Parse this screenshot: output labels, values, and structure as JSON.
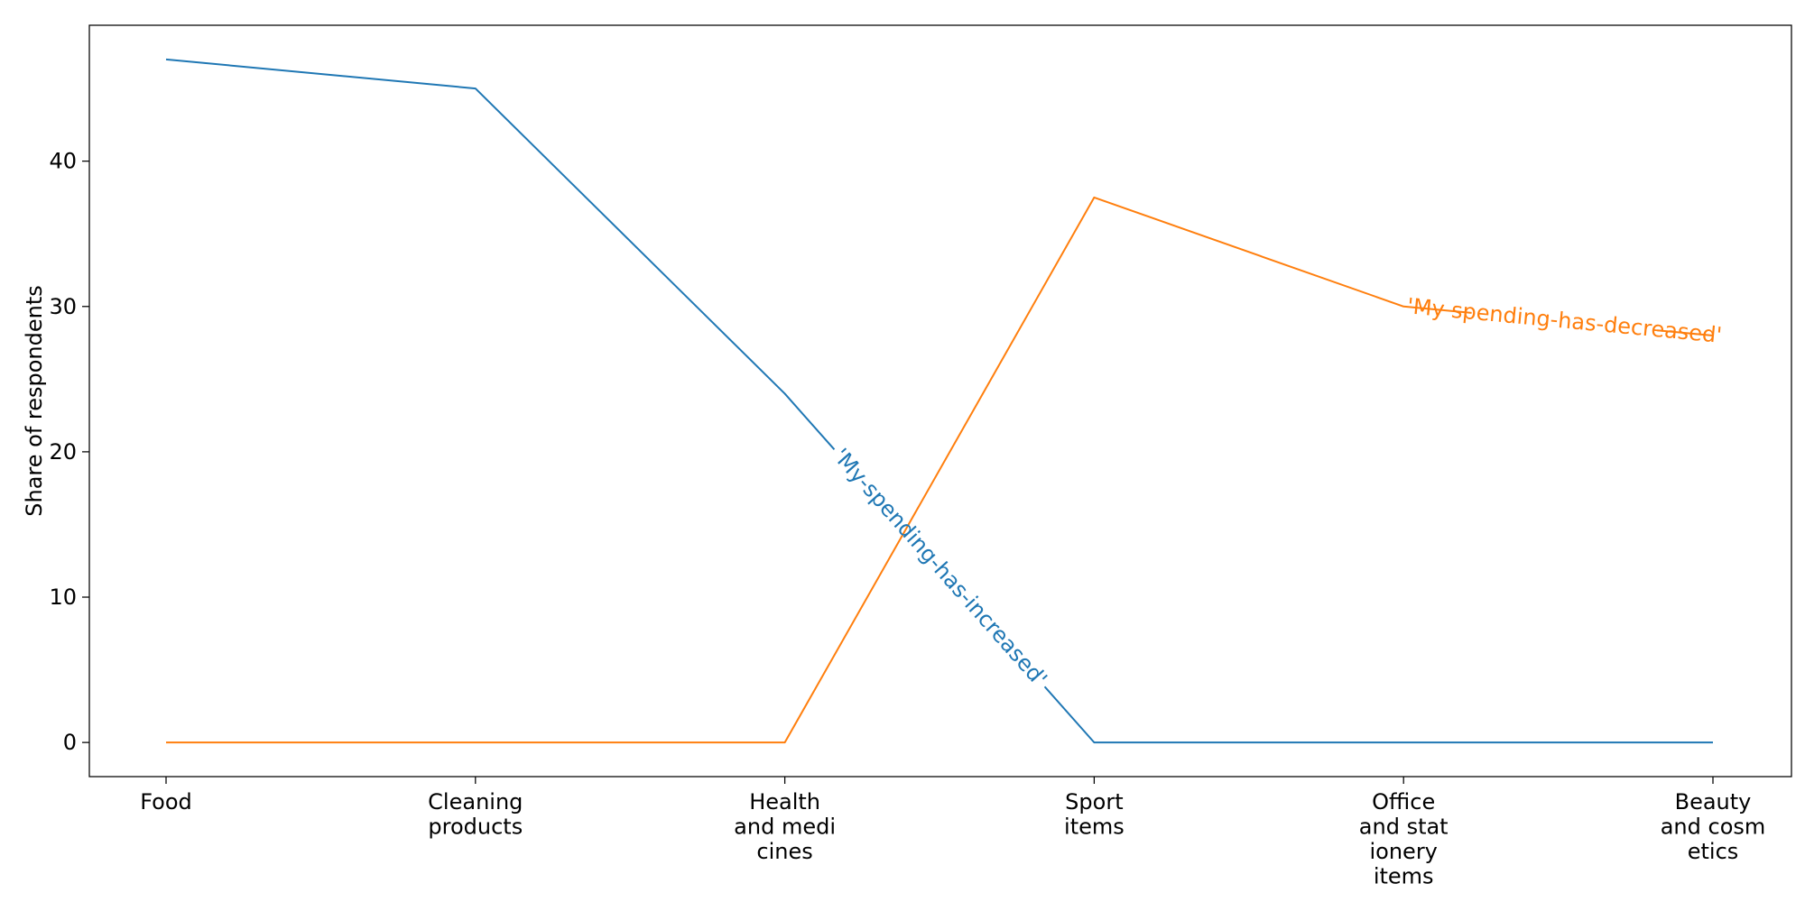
{
  "chart_data": {
    "type": "line",
    "title": "",
    "xlabel": "",
    "ylabel": "Share of respondents",
    "categories": [
      [
        "Food"
      ],
      [
        "Cleaning",
        "products"
      ],
      [
        "Health",
        "and medi",
        "cines"
      ],
      [
        "Sport",
        "items"
      ],
      [
        "Office",
        "and stat",
        "ionery",
        "items"
      ],
      [
        "Beauty",
        "and cosm",
        "etics"
      ]
    ],
    "ylim": [
      -2.35,
      49.35
    ],
    "yticks": [
      0,
      10,
      20,
      30,
      40
    ],
    "grid": false,
    "series": [
      {
        "name": "'My-spending-has-increased'",
        "color": "#1f77b4",
        "values": [
          47,
          45,
          24,
          0,
          0,
          0
        ]
      },
      {
        "name": "'My spending-has-decreased'",
        "color": "#ff7f0e",
        "values": [
          0,
          0,
          0,
          37.5,
          30,
          28
        ]
      }
    ]
  }
}
